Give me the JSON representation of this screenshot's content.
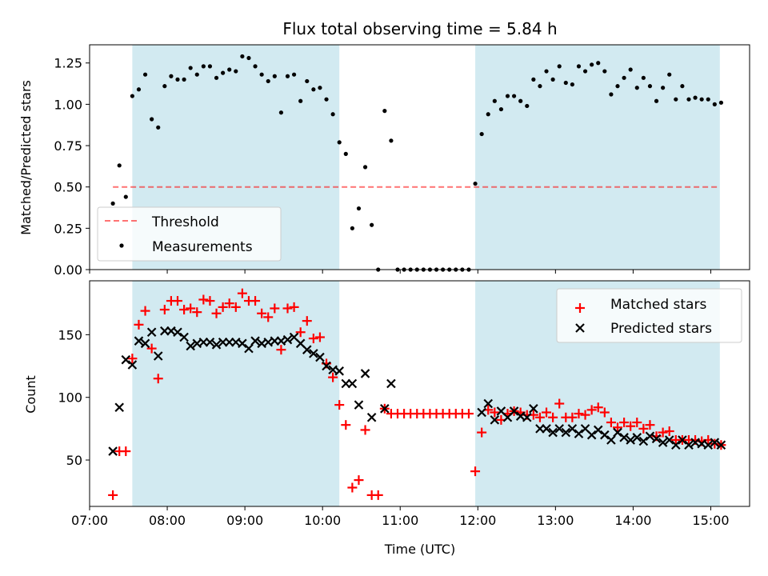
{
  "figure": {
    "title": "Flux total observing time = 5.84 h",
    "xlabel": "Time (UTC)"
  },
  "colors": {
    "shade": "#add8e6",
    "threshold": "#ff0000",
    "measurement": "#000000",
    "matched": "#ff0000",
    "predicted": "#000000"
  },
  "chart_data": [
    {
      "type": "scatter",
      "panel": "top",
      "ylabel": "Matched/Predicted stars",
      "xlim": [
        "07:00",
        "15:30"
      ],
      "ylim": [
        0.0,
        1.36
      ],
      "xticks": [
        "07:00",
        "08:00",
        "09:00",
        "10:00",
        "11:00",
        "12:00",
        "13:00",
        "14:00",
        "15:00"
      ],
      "yticks": [
        "0.00",
        "0.25",
        "0.50",
        "0.75",
        "1.00",
        "1.25"
      ],
      "shaded_intervals": [
        [
          "07:33",
          "10:13"
        ],
        [
          "11:58",
          "15:07"
        ]
      ],
      "legend_position": "lower-left",
      "threshold": {
        "name": "Threshold",
        "y": 0.5,
        "x_range": [
          "07:18",
          "15:05"
        ]
      },
      "series": [
        {
          "name": "Measurements",
          "x": [
            "07:18",
            "07:23",
            "07:28",
            "07:33",
            "07:38",
            "07:43",
            "07:48",
            "07:53",
            "07:58",
            "08:03",
            "08:08",
            "08:13",
            "08:18",
            "08:23",
            "08:28",
            "08:33",
            "08:38",
            "08:43",
            "08:48",
            "08:53",
            "08:58",
            "09:03",
            "09:08",
            "09:13",
            "09:18",
            "09:23",
            "09:28",
            "09:33",
            "09:38",
            "09:43",
            "09:48",
            "09:53",
            "09:58",
            "10:03",
            "10:08",
            "10:13",
            "10:18",
            "10:23",
            "10:28",
            "10:33",
            "10:38",
            "10:43",
            "10:48",
            "10:53",
            "10:58",
            "11:03",
            "11:08",
            "11:13",
            "11:18",
            "11:23",
            "11:28",
            "11:33",
            "11:38",
            "11:43",
            "11:48",
            "11:53",
            "11:58",
            "12:03",
            "12:08",
            "12:13",
            "12:18",
            "12:23",
            "12:28",
            "12:33",
            "12:38",
            "12:43",
            "12:48",
            "12:53",
            "12:58",
            "13:03",
            "13:08",
            "13:13",
            "13:18",
            "13:23",
            "13:28",
            "13:33",
            "13:38",
            "13:43",
            "13:48",
            "13:53",
            "13:58",
            "14:03",
            "14:08",
            "14:13",
            "14:18",
            "14:23",
            "14:28",
            "14:33",
            "14:38",
            "14:43",
            "14:48",
            "14:53",
            "14:58",
            "15:03",
            "15:08"
          ],
          "y": [
            0.4,
            0.63,
            0.44,
            1.05,
            1.09,
            1.18,
            0.91,
            0.86,
            1.11,
            1.17,
            1.15,
            1.15,
            1.22,
            1.18,
            1.23,
            1.23,
            1.16,
            1.19,
            1.21,
            1.2,
            1.29,
            1.28,
            1.23,
            1.18,
            1.14,
            1.17,
            0.95,
            1.17,
            1.18,
            1.02,
            1.14,
            1.09,
            1.1,
            1.03,
            0.94,
            0.77,
            0.7,
            0.25,
            0.37,
            0.62,
            0.27,
            0.0,
            0.96,
            0.78,
            0.0,
            0.0,
            0.0,
            0.0,
            0.0,
            0.0,
            0.0,
            0.0,
            0.0,
            0.0,
            0.0,
            0.0,
            0.52,
            0.82,
            0.94,
            1.02,
            0.97,
            1.05,
            1.05,
            1.02,
            0.99,
            1.15,
            1.11,
            1.2,
            1.15,
            1.23,
            1.13,
            1.12,
            1.23,
            1.2,
            1.24,
            1.25,
            1.2,
            1.06,
            1.11,
            1.16,
            1.21,
            1.1,
            1.16,
            1.11,
            1.02,
            1.1,
            1.18,
            1.03,
            1.11,
            1.03,
            1.04,
            1.03,
            1.03,
            1.0,
            1.01
          ]
        }
      ]
    },
    {
      "type": "scatter",
      "panel": "bottom",
      "ylabel": "Count",
      "xlim": [
        "07:00",
        "15:30"
      ],
      "ylim": [
        13,
        193
      ],
      "xticks": [
        "07:00",
        "08:00",
        "09:00",
        "10:00",
        "11:00",
        "12:00",
        "13:00",
        "14:00",
        "15:00"
      ],
      "yticks": [
        "50",
        "100",
        "150"
      ],
      "shaded_intervals": [
        [
          "07:33",
          "10:13"
        ],
        [
          "11:58",
          "15:07"
        ]
      ],
      "legend_position": "upper-right",
      "series": [
        {
          "name": "Matched stars",
          "x": [
            "07:18",
            "07:23",
            "07:28",
            "07:33",
            "07:38",
            "07:43",
            "07:48",
            "07:53",
            "07:58",
            "08:03",
            "08:08",
            "08:13",
            "08:18",
            "08:23",
            "08:28",
            "08:33",
            "08:38",
            "08:43",
            "08:48",
            "08:53",
            "08:58",
            "09:03",
            "09:08",
            "09:13",
            "09:18",
            "09:23",
            "09:28",
            "09:33",
            "09:38",
            "09:43",
            "09:48",
            "09:53",
            "09:58",
            "10:03",
            "10:08",
            "10:13",
            "10:18",
            "10:23",
            "10:28",
            "10:33",
            "10:38",
            "10:43",
            "10:48",
            "10:53",
            "10:58",
            "11:03",
            "11:08",
            "11:13",
            "11:18",
            "11:23",
            "11:28",
            "11:33",
            "11:38",
            "11:43",
            "11:48",
            "11:53",
            "11:58",
            "12:03",
            "12:08",
            "12:13",
            "12:18",
            "12:23",
            "12:28",
            "12:33",
            "12:38",
            "12:43",
            "12:48",
            "12:53",
            "12:58",
            "13:03",
            "13:08",
            "13:13",
            "13:18",
            "13:23",
            "13:28",
            "13:33",
            "13:38",
            "13:43",
            "13:48",
            "13:53",
            "13:58",
            "14:03",
            "14:08",
            "14:13",
            "14:18",
            "14:23",
            "14:28",
            "14:33",
            "14:38",
            "14:43",
            "14:48",
            "14:53",
            "14:58",
            "15:03",
            "15:08"
          ],
          "y": [
            22,
            57,
            57,
            131,
            158,
            169,
            139,
            115,
            170,
            177,
            177,
            170,
            171,
            168,
            178,
            177,
            167,
            172,
            175,
            172,
            183,
            177,
            177,
            167,
            164,
            171,
            138,
            171,
            172,
            152,
            161,
            147,
            148,
            127,
            116,
            94,
            78,
            28,
            34,
            74,
            22,
            22,
            91,
            87,
            87,
            87,
            87,
            87,
            87,
            87,
            87,
            87,
            87,
            87,
            87,
            87,
            41,
            72,
            90,
            88,
            82,
            87,
            89,
            88,
            86,
            86,
            84,
            88,
            84,
            95,
            84,
            84,
            87,
            86,
            90,
            92,
            88,
            80,
            76,
            80,
            77,
            80,
            75,
            78,
            69,
            72,
            73,
            66,
            66,
            66,
            66,
            65,
            66,
            63,
            62
          ]
        },
        {
          "name": "Predicted stars",
          "x": [
            "07:18",
            "07:23",
            "07:28",
            "07:33",
            "07:38",
            "07:43",
            "07:48",
            "07:53",
            "07:58",
            "08:03",
            "08:08",
            "08:13",
            "08:18",
            "08:23",
            "08:28",
            "08:33",
            "08:38",
            "08:43",
            "08:48",
            "08:53",
            "08:58",
            "09:03",
            "09:08",
            "09:13",
            "09:18",
            "09:23",
            "09:28",
            "09:33",
            "09:38",
            "09:43",
            "09:48",
            "09:53",
            "09:58",
            "10:03",
            "10:08",
            "10:13",
            "10:18",
            "10:23",
            "10:28",
            "10:33",
            "10:38",
            "10:43",
            "10:48",
            "10:53",
            "10:58",
            "11:03",
            "11:08",
            "11:13",
            "11:18",
            "11:23",
            "11:28",
            "11:33",
            "11:38",
            "11:43",
            "11:48",
            "11:53",
            "11:58",
            "12:03",
            "12:08",
            "12:13",
            "12:18",
            "12:23",
            "12:28",
            "12:33",
            "12:38",
            "12:43",
            "12:48",
            "12:53",
            "12:58",
            "13:03",
            "13:08",
            "13:13",
            "13:18",
            "13:23",
            "13:28",
            "13:33",
            "13:38",
            "13:43",
            "13:48",
            "13:53",
            "13:58",
            "14:03",
            "14:08",
            "14:13",
            "14:18",
            "14:23",
            "14:28",
            "14:33",
            "14:38",
            "14:43",
            "14:48",
            "14:53",
            "14:58",
            "15:03",
            "15:08"
          ],
          "y": [
            57,
            92,
            130,
            126,
            145,
            143,
            152,
            133,
            153,
            153,
            152,
            148,
            141,
            143,
            144,
            144,
            142,
            144,
            144,
            144,
            143,
            139,
            145,
            143,
            144,
            145,
            145,
            146,
            148,
            143,
            138,
            135,
            132,
            125,
            122,
            121,
            111,
            111,
            94,
            119,
            84,
            null,
            91,
            111,
            null,
            null,
            null,
            null,
            null,
            null,
            null,
            null,
            null,
            null,
            null,
            null,
            null,
            88,
            95,
            82,
            89,
            84,
            89,
            85,
            84,
            91,
            75,
            75,
            72,
            75,
            72,
            75,
            71,
            75,
            70,
            74,
            70,
            66,
            72,
            68,
            66,
            68,
            65,
            69,
            67,
            64,
            66,
            62,
            66,
            62,
            64,
            63,
            62,
            64,
            62
          ]
        }
      ]
    }
  ]
}
